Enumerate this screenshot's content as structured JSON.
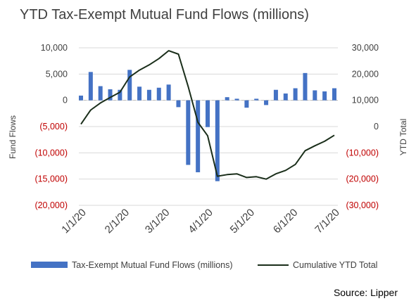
{
  "chart_data": {
    "type": "bar+line",
    "title": "YTD Tax-Exempt Mutual Fund Flows (millions)",
    "source": "Source:  Lipper",
    "y_left_label": "Fund Flows",
    "y_right_label": "YTD Total",
    "y_left_ticks": [
      "10,000",
      "5,000",
      "0",
      "(5,000)",
      "(10,000)",
      "(15,000)",
      "(20,000)"
    ],
    "y_left_values": [
      10000,
      5000,
      0,
      -5000,
      -10000,
      -15000,
      -20000
    ],
    "y_right_ticks": [
      "30,000",
      "20,000",
      "10,000",
      "0",
      "(10,000)",
      "(20,000)",
      "(30,000)"
    ],
    "y_right_values": [
      30000,
      20000,
      10000,
      0,
      -10000,
      -20000,
      -30000
    ],
    "ylim_left": [
      -20000,
      10000
    ],
    "ylim_right": [
      -30000,
      30000
    ],
    "x_ticks": [
      "1/1/20",
      "2/1/20",
      "3/1/20",
      "4/1/20",
      "5/1/20",
      "6/1/20",
      "7/1/20"
    ],
    "grid": true,
    "legend_position": "bottom",
    "colors": {
      "bar": "#4472c4",
      "line": "#1a2e1a",
      "negative_tick": "#c00000"
    },
    "series": [
      {
        "name": "Tax-Exempt Mutual Fund Flows (millions)",
        "kind": "bar",
        "axis": "left",
        "x": [
          "2020-01-01",
          "2020-01-08",
          "2020-01-15",
          "2020-01-22",
          "2020-01-29",
          "2020-02-05",
          "2020-02-12",
          "2020-02-19",
          "2020-02-26",
          "2020-03-04",
          "2020-03-11",
          "2020-03-18",
          "2020-03-25",
          "2020-04-01",
          "2020-04-08",
          "2020-04-15",
          "2020-04-22",
          "2020-04-29",
          "2020-05-06",
          "2020-05-13",
          "2020-05-20",
          "2020-05-27",
          "2020-06-03",
          "2020-06-10",
          "2020-06-17",
          "2020-06-24",
          "2020-07-01"
        ],
        "values": [
          900,
          5400,
          2700,
          2100,
          2000,
          5800,
          2600,
          2000,
          2400,
          3000,
          -1300,
          -12300,
          -13700,
          -5100,
          -15400,
          600,
          300,
          -1400,
          300,
          -900,
          2000,
          1300,
          2300,
          5200,
          1900,
          1700,
          2300
        ]
      },
      {
        "name": "Cumulative YTD Total",
        "kind": "line",
        "axis": "right",
        "x": [
          "2020-01-01",
          "2020-01-08",
          "2020-01-15",
          "2020-01-22",
          "2020-01-29",
          "2020-02-05",
          "2020-02-12",
          "2020-02-19",
          "2020-02-26",
          "2020-03-04",
          "2020-03-11",
          "2020-03-18",
          "2020-03-25",
          "2020-04-01",
          "2020-04-08",
          "2020-04-15",
          "2020-04-22",
          "2020-04-29",
          "2020-05-06",
          "2020-05-13",
          "2020-05-20",
          "2020-05-27",
          "2020-06-03",
          "2020-06-10",
          "2020-06-17",
          "2020-06-24",
          "2020-07-01"
        ],
        "values": [
          900,
          6300,
          9000,
          11100,
          13100,
          18900,
          21500,
          23500,
          25900,
          28900,
          27600,
          15300,
          1600,
          -3500,
          -18900,
          -18300,
          -18000,
          -19400,
          -19100,
          -20000,
          -18000,
          -16700,
          -14400,
          -9200,
          -7300,
          -5600,
          -3300
        ]
      }
    ]
  }
}
